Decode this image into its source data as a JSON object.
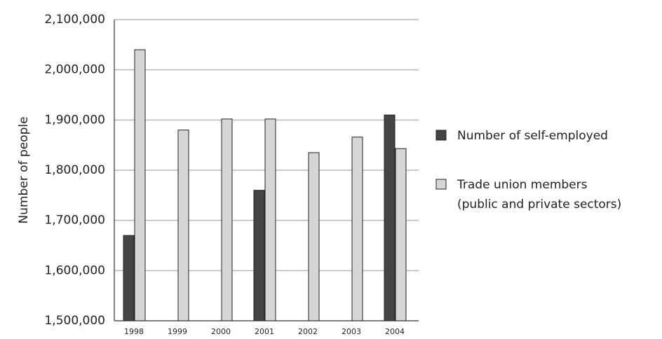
{
  "chart_data": {
    "type": "bar",
    "title": "",
    "xlabel": "",
    "ylabel": "Number of people",
    "categories": [
      "1998",
      "1999",
      "2000",
      "2001",
      "2002",
      "2003",
      "2004"
    ],
    "series": [
      {
        "name": "Number of self-employed",
        "color": "#444444",
        "values": [
          1670000,
          null,
          null,
          1760000,
          null,
          null,
          1910000
        ]
      },
      {
        "name": "Trade union members (public and private sectors)",
        "legend_lines": [
          "Trade union members",
          "(public and private sectors)"
        ],
        "color": "#d6d6d6",
        "values": [
          2040000,
          1880000,
          1902000,
          1902000,
          1835000,
          1866000,
          1843000
        ]
      }
    ],
    "ylim": [
      1500000,
      2100000
    ],
    "yticks": [
      1500000,
      1600000,
      1700000,
      1800000,
      1900000,
      2000000,
      2100000
    ],
    "ytick_labels": [
      "1,500,000",
      "1,600,000",
      "1,700,000",
      "1,800,000",
      "1,900,000",
      "2,000,000",
      "2,100,000"
    ],
    "grid": true,
    "legend_position": "right"
  }
}
